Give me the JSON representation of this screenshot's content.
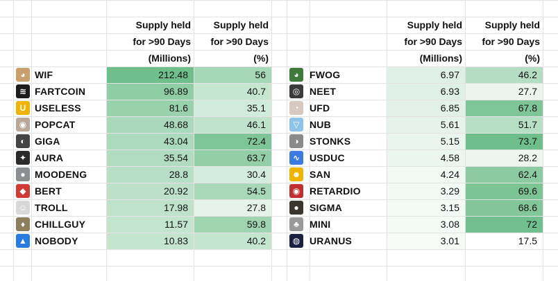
{
  "headers": {
    "amount": [
      "Supply held",
      "for >90 Days",
      "(Millions)"
    ],
    "percent": [
      "Supply held",
      "for >90 Days",
      "(%)"
    ]
  },
  "left_table": [
    {
      "token": "WIF",
      "millions": "212.48",
      "percent": "56",
      "icon": "dog-icon",
      "color": "#c9a06b",
      "glyph": "◕"
    },
    {
      "token": "FARTCOIN",
      "millions": "96.89",
      "percent": "40.7",
      "icon": "fartcoin-icon",
      "color": "#1c1c1c",
      "glyph": "≋"
    },
    {
      "token": "USELESS",
      "millions": "81.6",
      "percent": "35.1",
      "icon": "useless-icon",
      "color": "#f0b400",
      "glyph": "U"
    },
    {
      "token": "POPCAT",
      "millions": "48.68",
      "percent": "46.1",
      "icon": "cat-icon",
      "color": "#b9a79a",
      "glyph": "◉"
    },
    {
      "token": "GIGA",
      "millions": "43.04",
      "percent": "72.4",
      "icon": "giga-icon",
      "color": "#444444",
      "glyph": "◐"
    },
    {
      "token": "AURA",
      "millions": "35.54",
      "percent": "63.7",
      "icon": "aura-icon",
      "color": "#2b2b2b",
      "glyph": "✦"
    },
    {
      "token": "MOODENG",
      "millions": "28.8",
      "percent": "30.4",
      "icon": "hippo-icon",
      "color": "#8b8f92",
      "glyph": "●"
    },
    {
      "token": "BERT",
      "millions": "20.92",
      "percent": "54.5",
      "icon": "bert-icon",
      "color": "#d23a35",
      "glyph": "◆"
    },
    {
      "token": "TROLL",
      "millions": "17.98",
      "percent": "27.8",
      "icon": "troll-icon",
      "color": "#d8d8d8",
      "glyph": "☺"
    },
    {
      "token": "CHILLGUY",
      "millions": "11.57",
      "percent": "59.8",
      "icon": "chillguy-icon",
      "color": "#8d7f5c",
      "glyph": "♦"
    },
    {
      "token": "NOBODY",
      "millions": "10.83",
      "percent": "40.2",
      "icon": "ghost-icon",
      "color": "#2a7de0",
      "glyph": "▲"
    }
  ],
  "right_table": [
    {
      "token": "FWOG",
      "millions": "6.97",
      "percent": "46.2",
      "icon": "frog-icon",
      "color": "#3e7a3a",
      "glyph": "◕"
    },
    {
      "token": "NEET",
      "millions": "6.93",
      "percent": "27.7",
      "icon": "neet-icon",
      "color": "#3a3a3a",
      "glyph": "◎"
    },
    {
      "token": "UFD",
      "millions": "6.85",
      "percent": "67.8",
      "icon": "ufd-icon",
      "color": "#d7c8c0",
      "glyph": "◔"
    },
    {
      "token": "NUB",
      "millions": "5.61",
      "percent": "51.7",
      "icon": "nub-icon",
      "color": "#8fc4ea",
      "glyph": "▽"
    },
    {
      "token": "STONKS",
      "millions": "5.15",
      "percent": "73.7",
      "icon": "stonks-icon",
      "color": "#8a8a8a",
      "glyph": "◑"
    },
    {
      "token": "USDUC",
      "millions": "4.58",
      "percent": "28.2",
      "icon": "usduc-icon",
      "color": "#3d7be0",
      "glyph": "∿"
    },
    {
      "token": "SAN",
      "millions": "4.24",
      "percent": "62.4",
      "icon": "san-icon",
      "color": "#f0b400",
      "glyph": "☻"
    },
    {
      "token": "RETARDIO",
      "millions": "3.29",
      "percent": "69.6",
      "icon": "retardio-icon",
      "color": "#c03030",
      "glyph": "◉"
    },
    {
      "token": "SIGMA",
      "millions": "3.15",
      "percent": "68.6",
      "icon": "sigma-icon",
      "color": "#3a3530",
      "glyph": "●"
    },
    {
      "token": "MINI",
      "millions": "3.08",
      "percent": "72",
      "icon": "mini-icon",
      "color": "#9a9a9a",
      "glyph": "♣"
    },
    {
      "token": "URANUS",
      "millions": "3.01",
      "percent": "17.5",
      "icon": "planet-icon",
      "color": "#1a2140",
      "glyph": "◍"
    }
  ],
  "shades": {
    "left_amount": [
      "#6fbf8d",
      "#8fcda5",
      "#98d1ac",
      "#a9d9ba",
      "#acdabc",
      "#b2dcc0",
      "#b7dfc5",
      "#bce1c8",
      "#bee2ca",
      "#c3e4cd",
      "#c5e5ce"
    ],
    "left_percent": [
      "#a6d7b6",
      "#c6e6d0",
      "#d0eadb",
      "#bee2ca",
      "#80c597",
      "#93cea7",
      "#d4ecdf",
      "#a8d8b8",
      "#e6f3eb",
      "#a0d4b1",
      "#c4e5ce"
    ],
    "right_amount": [
      "#dff0e6",
      "#dff0e6",
      "#e1f1e7",
      "#e6f3eb",
      "#e9f5ee",
      "#ecf6f0",
      "#eff8f2",
      "#f3faf6",
      "#f4faf6",
      "#f4faf6",
      "#f6fbf8"
    ],
    "right_percent": [
      "#b5ddc2",
      "#ebf5ee",
      "#80c597",
      "#b7dfc4",
      "#6fbf8d",
      "#ecf6ef",
      "#8ccba1",
      "#7dc495",
      "#82c699",
      "#71bf8f",
      "#ffffff"
    ]
  }
}
